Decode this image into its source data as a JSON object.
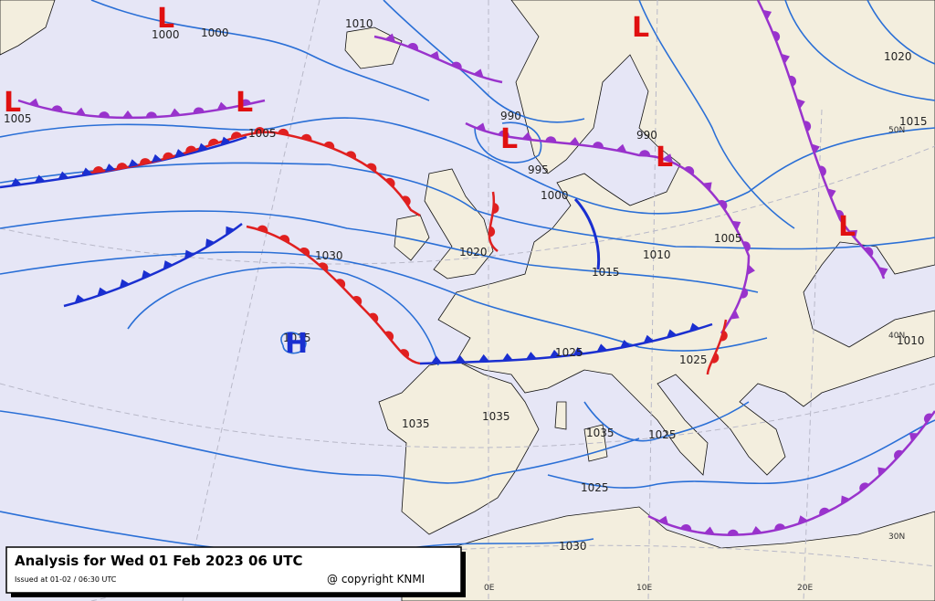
{
  "map": {
    "title": "Analysis for Wed 01 Feb 2023 06 UTC",
    "issued": "Issued at 01-02 / 06:30 UTC",
    "copyright": "@ copyright KNMI",
    "centers": [
      "L",
      "L",
      "L",
      "L",
      "L",
      "L",
      "L",
      "H"
    ],
    "isobar_labels": [
      1000,
      1000,
      1010,
      1005,
      1005,
      990,
      995,
      990,
      1000,
      1020,
      1030,
      1010,
      1015,
      1005,
      1035,
      1035,
      1035,
      1035,
      1025,
      1025,
      1025,
      1025,
      1030,
      1020,
      1015,
      1010
    ],
    "graticule_labels": [
      "50N",
      "40N",
      "30N",
      "0E",
      "10E",
      "20E"
    ]
  }
}
